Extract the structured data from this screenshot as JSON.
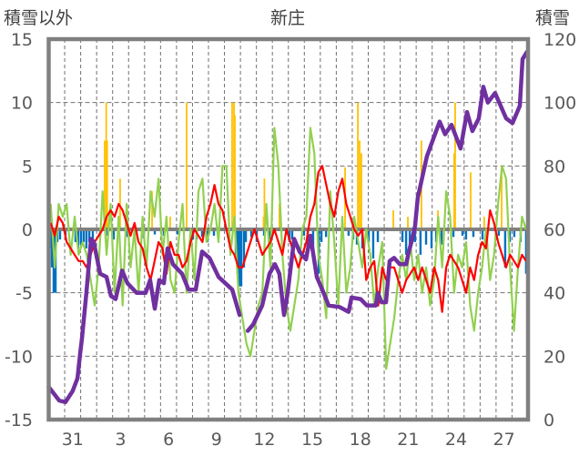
{
  "chart_data": {
    "type": "line",
    "title": "新庄",
    "left_axis_label": "積雪以外",
    "right_axis_label": "積雪",
    "left_ylim": [
      -15,
      15
    ],
    "right_ylim": [
      0,
      120
    ],
    "left_ticks": [
      "15",
      "10",
      "5",
      "0",
      "-5",
      "-10",
      "-15"
    ],
    "right_ticks": [
      "120",
      "100",
      "80",
      "60",
      "40",
      "20",
      "0"
    ],
    "x_unit": "days since Dec 30 00:00",
    "xlim": [
      0,
      30
    ],
    "x_tick_labels": [
      {
        "day": 1.5,
        "label": "31"
      },
      {
        "day": 4.5,
        "label": "3"
      },
      {
        "day": 7.5,
        "label": "6"
      },
      {
        "day": 10.5,
        "label": "9"
      },
      {
        "day": 13.5,
        "label": "12"
      },
      {
        "day": 16.5,
        "label": "15"
      },
      {
        "day": 19.5,
        "label": "18"
      },
      {
        "day": 22.5,
        "label": "21"
      },
      {
        "day": 25.5,
        "label": "24"
      },
      {
        "day": 28.5,
        "label": "27"
      }
    ],
    "grid": true,
    "colors": {
      "red": "#ff0000",
      "green": "#92d050",
      "purple": "#7030a0",
      "orange": "#ffc000",
      "blue": "#0070c0",
      "frame": "#808080"
    },
    "red_series": {
      "axis": "left",
      "x_start": 0.125,
      "x_step": 0.25,
      "values": [
        0.5,
        -0.5,
        1,
        0.5,
        -1,
        -1.5,
        -2,
        -2.5,
        -2.5,
        -3,
        -2,
        -1,
        -0.5,
        0,
        1,
        1.5,
        1,
        2,
        1.5,
        0.5,
        -0.5,
        0.5,
        -1,
        -1.5,
        -3,
        -4,
        -2.5,
        -1,
        -1.5,
        -3.5,
        -1,
        -2,
        -2,
        -3,
        -2.5,
        -1,
        0,
        -0.5,
        -1,
        1,
        2,
        3.5,
        2,
        1.5,
        0,
        -1.5,
        -2,
        -3,
        -3,
        -2,
        -1,
        0,
        -1,
        -2,
        -1.5,
        -1,
        0,
        -1,
        -2,
        0,
        -1,
        -2,
        -3,
        -2,
        -1,
        1,
        2,
        4.5,
        5,
        3.5,
        2,
        1,
        3,
        4,
        2,
        1,
        0,
        -0.5,
        0,
        -4,
        -3,
        -2.5,
        -6,
        -3,
        -4,
        -3,
        -3,
        -4,
        -5,
        -4,
        -3.5,
        -3,
        -4,
        -3,
        -4,
        -5,
        -3,
        -4,
        -6.5,
        -3,
        -2,
        -2.5,
        -3,
        -4,
        -5,
        -3,
        -4,
        -2,
        -1,
        -1.5,
        1.5,
        0.5,
        -1,
        -2,
        -3,
        -2,
        -2.5,
        -3,
        -2,
        -2.5
      ]
    },
    "green_series": {
      "axis": "left",
      "x_start": 0.125,
      "x_step": 0.25,
      "values": [
        2,
        -3,
        2,
        1,
        2,
        -2,
        1,
        -2,
        -1,
        -2,
        -4,
        -6,
        -3,
        3,
        -2,
        2,
        -5,
        1,
        -6,
        2,
        -3,
        0,
        -5,
        1,
        -3,
        3,
        1,
        4,
        -2,
        1,
        -4,
        -5,
        -1,
        2,
        -5,
        0,
        -4,
        3,
        4,
        -1,
        0,
        2,
        -1,
        5,
        5,
        -2,
        1,
        -5,
        -7,
        -9,
        -10,
        -8,
        -6,
        -5,
        2,
        -3,
        8,
        5,
        -2,
        -6,
        -8,
        -6,
        -4,
        0,
        1,
        8,
        6,
        -2,
        -4,
        -7,
        3,
        -1,
        -6,
        1,
        -5,
        -3,
        1,
        -1,
        -3,
        0,
        -2,
        -6,
        -3,
        -1,
        -11,
        -9,
        -7,
        -4,
        -2,
        -4,
        -1,
        -4,
        -2,
        -5,
        -3,
        -6,
        -4,
        1,
        -3,
        3,
        1,
        -5,
        -2,
        -3,
        -1,
        -6,
        -8,
        -5,
        -3,
        0,
        -4,
        -2,
        2,
        5,
        4,
        -3,
        -8,
        -3,
        1,
        0
      ]
    },
    "snow_depth_series": {
      "axis": "right",
      "points": [
        [
          0,
          10.3
        ],
        [
          0.66,
          6
        ],
        [
          1.05,
          5.5
        ],
        [
          1.5,
          9
        ],
        [
          1.8,
          13
        ],
        [
          1.97,
          21
        ],
        [
          2.08,
          25.5
        ],
        [
          2.36,
          40
        ],
        [
          2.65,
          57
        ],
        [
          2.82,
          56
        ],
        [
          3.22,
          46
        ],
        [
          3.62,
          45
        ],
        [
          3.9,
          39
        ],
        [
          4.19,
          38
        ],
        [
          4.59,
          47
        ],
        [
          4.93,
          43
        ],
        [
          5.5,
          40
        ],
        [
          6.07,
          40
        ],
        [
          6.35,
          44
        ],
        [
          6.64,
          35
        ],
        [
          6.92,
          44
        ],
        [
          7.21,
          43
        ],
        [
          7.44,
          54
        ],
        [
          7.78,
          49
        ],
        [
          8.35,
          46
        ],
        [
          8.75,
          41
        ],
        [
          9.2,
          41
        ],
        [
          9.6,
          53
        ],
        [
          10.06,
          51
        ],
        [
          10.63,
          45
        ],
        [
          11.49,
          41
        ],
        [
          11.95,
          33
        ],
        null,
        [
          12.46,
          28
        ],
        [
          12.8,
          30
        ],
        [
          13.36,
          36
        ],
        [
          13.82,
          46
        ],
        [
          14.16,
          49
        ],
        [
          14.44,
          46
        ],
        [
          14.73,
          33
        ],
        [
          14.96,
          40
        ],
        [
          15.36,
          57
        ],
        [
          15.7,
          53
        ],
        [
          16.1,
          50.5
        ],
        [
          16.38,
          58
        ],
        [
          16.78,
          45
        ],
        [
          17.12,
          41
        ],
        [
          17.52,
          36
        ],
        [
          18.2,
          35.5
        ],
        [
          18.77,
          34
        ],
        [
          18.95,
          38.5
        ],
        [
          19.52,
          38
        ],
        [
          19.91,
          36
        ],
        [
          20.48,
          36
        ],
        [
          20.6,
          40
        ],
        [
          20.83,
          37
        ],
        [
          21.11,
          37
        ],
        [
          21.34,
          50
        ],
        [
          21.62,
          51
        ],
        [
          21.97,
          49
        ],
        [
          22.37,
          49
        ],
        [
          22.54,
          53
        ],
        [
          22.76,
          57
        ],
        [
          22.93,
          61
        ],
        [
          23.1,
          70
        ],
        [
          23.67,
          83
        ],
        [
          24.07,
          88.5
        ],
        [
          24.47,
          94
        ],
        [
          24.81,
          90
        ],
        [
          25.21,
          93
        ],
        [
          25.78,
          85.5
        ],
        [
          26.18,
          97
        ],
        [
          26.52,
          91
        ],
        [
          26.92,
          95
        ],
        [
          27.2,
          105
        ],
        [
          27.49,
          100
        ],
        [
          27.94,
          103
        ],
        [
          28.63,
          95
        ],
        [
          29.03,
          93.5
        ],
        [
          29.49,
          99
        ],
        [
          29.66,
          113.7
        ],
        [
          29.94,
          116
        ]
      ]
    },
    "orange_bars": {
      "axis": "left",
      "points": [
        [
          3.5,
          7
        ],
        [
          3.6,
          10
        ],
        [
          3.66,
          7
        ],
        [
          4.47,
          4
        ],
        [
          6.47,
          3
        ],
        [
          7.6,
          1
        ],
        [
          8.63,
          10
        ],
        [
          11.48,
          10
        ],
        [
          11.6,
          10
        ],
        [
          11.65,
          9
        ],
        [
          13.45,
          1
        ],
        [
          13.5,
          4
        ],
        [
          14.44,
          2
        ],
        [
          18.55,
          4.9
        ],
        [
          19.35,
          10
        ],
        [
          19.46,
          7
        ],
        [
          19.57,
          6
        ],
        [
          21.57,
          1.5
        ],
        [
          22.48,
          1
        ],
        [
          23.33,
          7
        ],
        [
          24.36,
          1.5
        ],
        [
          25.38,
          6
        ],
        [
          25.44,
          10
        ],
        [
          26.41,
          4.5
        ],
        [
          27.26,
          1
        ],
        [
          28.35,
          5
        ]
      ]
    },
    "blue_bars": {
      "axis": "left",
      "points": [
        [
          0.09,
          -1.5
        ],
        [
          0.2,
          -3
        ],
        [
          0.31,
          -5
        ],
        [
          0.43,
          -5
        ],
        [
          0.54,
          -1
        ],
        [
          0.71,
          -0.8
        ],
        [
          1.05,
          -0.5
        ],
        [
          1.68,
          -1
        ],
        [
          1.85,
          -1.5
        ],
        [
          2.02,
          -1.2
        ],
        [
          2.19,
          -1
        ],
        [
          2.36,
          -1.5
        ],
        [
          2.54,
          -1
        ],
        [
          2.76,
          -1.3
        ],
        [
          3.22,
          -0.5
        ],
        [
          3.68,
          -0.5
        ],
        [
          4.07,
          -0.8
        ],
        [
          4.36,
          -0.5
        ],
        [
          4.93,
          -0.6
        ],
        [
          5.5,
          -0.4
        ],
        [
          5.95,
          -0.7
        ],
        [
          6.64,
          -0.4
        ],
        [
          7.21,
          -0.5
        ],
        [
          8.06,
          -0.4
        ],
        [
          9.03,
          -0.8
        ],
        [
          9.26,
          -0.8
        ],
        [
          9.6,
          -0.6
        ],
        [
          9.94,
          -1
        ],
        [
          10.34,
          -0.5
        ],
        [
          11.71,
          -2
        ],
        [
          11.82,
          -3.5
        ],
        [
          11.94,
          -4.5
        ],
        [
          12.05,
          -4.5
        ],
        [
          12.22,
          -3
        ],
        [
          12.34,
          -1
        ],
        [
          12.68,
          -0.6
        ],
        [
          13.02,
          -1
        ],
        [
          13.48,
          -0.5
        ],
        [
          13.82,
          -0.8
        ],
        [
          15.07,
          -1
        ],
        [
          15.24,
          -0.8
        ],
        [
          15.98,
          -0.5
        ],
        [
          16.21,
          -1.2
        ],
        [
          16.55,
          -2
        ],
        [
          16.9,
          -3.5
        ],
        [
          17.07,
          -1
        ],
        [
          17.36,
          -0.6
        ],
        [
          18.77,
          -0.5
        ],
        [
          19.06,
          -0.8
        ],
        [
          19.29,
          -1.2
        ],
        [
          19.63,
          -1.5
        ],
        [
          20.03,
          -1
        ],
        [
          20.31,
          -2.3
        ],
        [
          20.6,
          -1
        ],
        [
          22.14,
          -1
        ],
        [
          22.37,
          -2
        ],
        [
          22.6,
          -1.5
        ],
        [
          22.93,
          -1
        ],
        [
          23.27,
          -2
        ],
        [
          23.62,
          -1.2
        ],
        [
          23.96,
          -1.5
        ],
        [
          24.25,
          -1
        ],
        [
          24.59,
          -1.2
        ],
        [
          25.33,
          -0.6
        ],
        [
          25.9,
          -0.5
        ],
        [
          26.12,
          -0.8
        ],
        [
          26.58,
          -0.6
        ],
        [
          27.15,
          -0.8
        ],
        [
          27.43,
          -1.2
        ],
        [
          28.17,
          -0.5
        ],
        [
          28.57,
          -3
        ],
        [
          28.86,
          -1
        ],
        [
          29.14,
          -0.6
        ],
        [
          29.54,
          -1
        ],
        [
          29.88,
          -3.5
        ]
      ]
    }
  }
}
